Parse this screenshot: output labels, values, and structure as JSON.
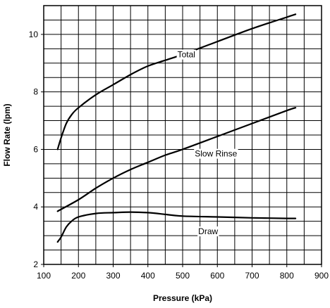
{
  "chart_data": {
    "type": "line",
    "title": "",
    "xlabel": "Pressure (kPa)",
    "ylabel": "Flow Rate (lpm)",
    "xlim": [
      100,
      900
    ],
    "ylim": [
      2,
      11
    ],
    "grid": true,
    "x_ticks": [
      100,
      200,
      300,
      400,
      500,
      600,
      700,
      800,
      900
    ],
    "x_tick_labels": [
      "100",
      "200",
      "300",
      "400",
      "500",
      "600",
      "700",
      "800",
      "900"
    ],
    "y_ticks": [
      2,
      4,
      6,
      8,
      10
    ],
    "y_tick_labels": [
      "2",
      "4",
      "6",
      "8",
      "10"
    ],
    "series": [
      {
        "name": "Total",
        "x": [
          140,
          150,
          165,
          180,
          200,
          250,
          300,
          350,
          400,
          450,
          500,
          600,
          700,
          800,
          825
        ],
        "y": [
          6.0,
          6.4,
          6.9,
          7.2,
          7.45,
          7.9,
          8.25,
          8.6,
          8.9,
          9.1,
          9.3,
          9.75,
          10.2,
          10.6,
          10.7
        ]
      },
      {
        "name": "Slow Rinse",
        "x": [
          140,
          200,
          250,
          300,
          350,
          400,
          450,
          500,
          600,
          700,
          800,
          825
        ],
        "y": [
          3.85,
          4.25,
          4.65,
          5.0,
          5.3,
          5.55,
          5.8,
          6.0,
          6.45,
          6.9,
          7.35,
          7.45
        ]
      },
      {
        "name": "Draw",
        "x": [
          140,
          150,
          165,
          180,
          200,
          250,
          300,
          350,
          400,
          450,
          500,
          600,
          700,
          800,
          825
        ],
        "y": [
          2.78,
          2.95,
          3.3,
          3.5,
          3.65,
          3.77,
          3.8,
          3.82,
          3.8,
          3.74,
          3.68,
          3.65,
          3.62,
          3.6,
          3.6
        ]
      }
    ],
    "annotations": [
      {
        "text": "Total",
        "x": 485,
        "y": 9.2
      },
      {
        "text": "Slow Rinse",
        "x": 535,
        "y": 5.75
      },
      {
        "text": "Draw",
        "x": 545,
        "y": 3.05
      }
    ],
    "colors": {
      "line": "#000000",
      "grid": "#000000",
      "background": "#ffffff"
    }
  }
}
